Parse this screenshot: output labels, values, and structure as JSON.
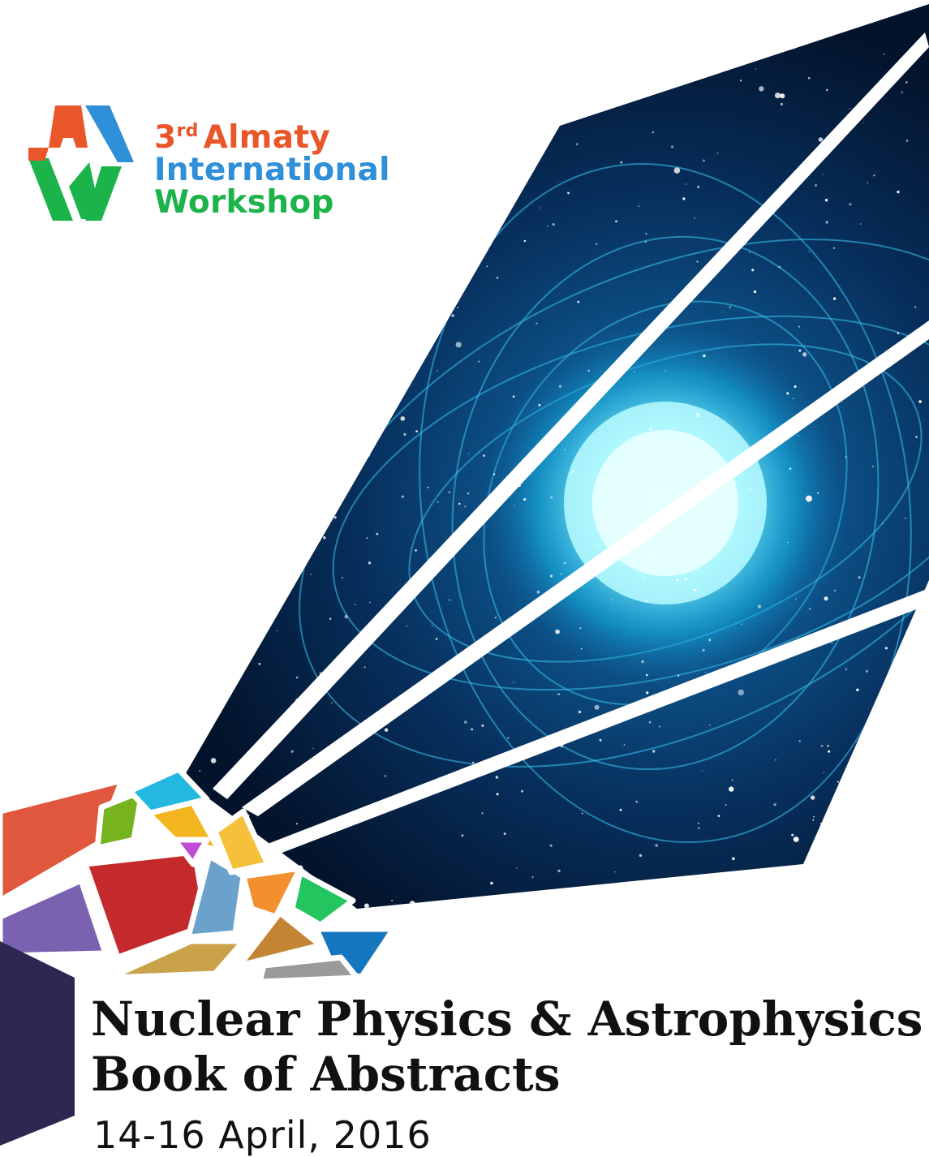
{
  "logo": {
    "ordinal_number": "3",
    "ordinal_suffix": "rd",
    "line1_rest": "Almaty",
    "line2": "International",
    "line3": "Workshop",
    "colors": {
      "orange": "#e8562a",
      "blue": "#2f8fd8",
      "green": "#1db34b"
    }
  },
  "title": {
    "line1": "Nuclear Physics & Astrophysics",
    "line2": "Book of Abstracts"
  },
  "dates": "14-16 April, 2016",
  "colors": {
    "space_dark": "#03132b",
    "space_mid": "#0b3f73",
    "star_glow": "#9ff6ff",
    "spine": "#2e2752"
  }
}
